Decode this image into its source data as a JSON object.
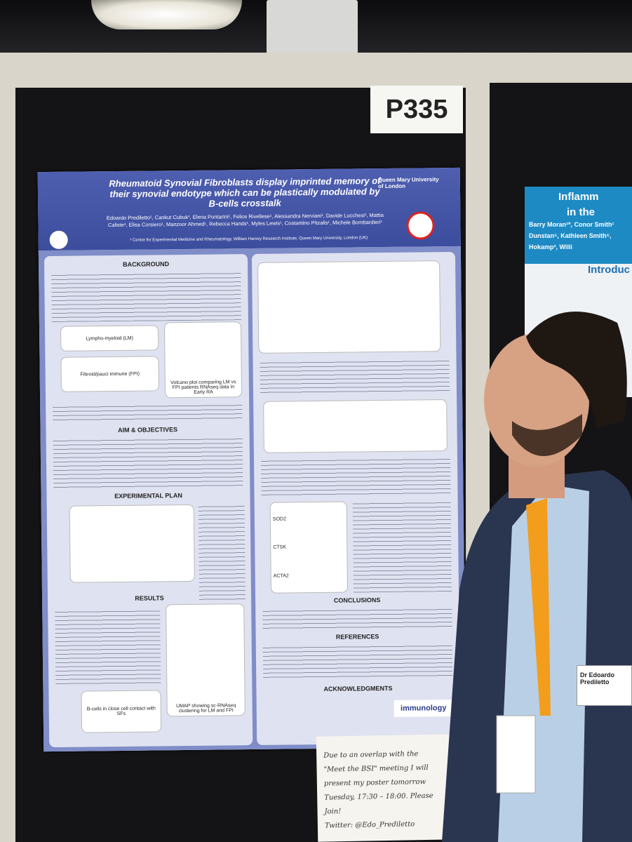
{
  "board_label": "P335",
  "poster": {
    "title": "Rheumatoid Synovial Fibroblasts display imprinted memory of their synovial endotype which can be plastically modulated by B-cells crosstalk",
    "authors": "Edoardo Prediletto¹, Cankut Cubuk¹, Elena Pontarini¹, Felice Rivellese¹, Alessandra Nerviani¹, Davide Lucchesi¹, Mattia Caliste¹, Elisa Corsiero¹, Manzoor Ahmed¹, Rebecca Hands¹, Myles Lewis¹, Costantino Pitzalis¹, Michele Bombardieri¹",
    "affiliation": "¹ Centre for Experimental Medicine and Rheumatology, William Harvey Research Institute, Queen Mary University, London (UK)",
    "university": "Queen Mary University of London",
    "left_sections": [
      "BACKGROUND",
      "AIM & OBJECTIVES",
      "EXPERIMENTAL PLAN",
      "RESULTS"
    ],
    "right_sections": [
      "CONCLUSIONS",
      "REFERENCES",
      "ACKNOWLEDGMENTS"
    ],
    "figure_labels": {
      "lm": "Lympho-myeloid (LM)",
      "fpi": "Fibroid/pauci immune (FPI)",
      "volcano": "Volcano plot comparing LM vs FPI patients RNAseq data in Early RA",
      "umap": "UMAP showing sc-RNAseq clustering for LM and FPI",
      "bcells": "B-cells in close cell contact with SFs",
      "genes": [
        "SOD2",
        "CTSK",
        "ACTA2"
      ]
    },
    "sponsor": "immunology"
  },
  "note": {
    "lines": [
      "Due to an overlap with the",
      "\"Meet the BSI\" meeting I will",
      "present my poster tomorrow",
      "Tuesday, 17:30 – 18:00. Please Join!",
      "Twitter: @Edo_Prediletto"
    ]
  },
  "badge": {
    "name": "Dr Edoardo Prediletto"
  },
  "right_poster": {
    "title_lines": [
      "Inflamm",
      "in the"
    ],
    "authors": "Barry Moran¹*, Conor Smith¹ Dunstan⁵, Kathleen Smith⁵, Hokamp², Willi",
    "heading": "Introduc"
  }
}
